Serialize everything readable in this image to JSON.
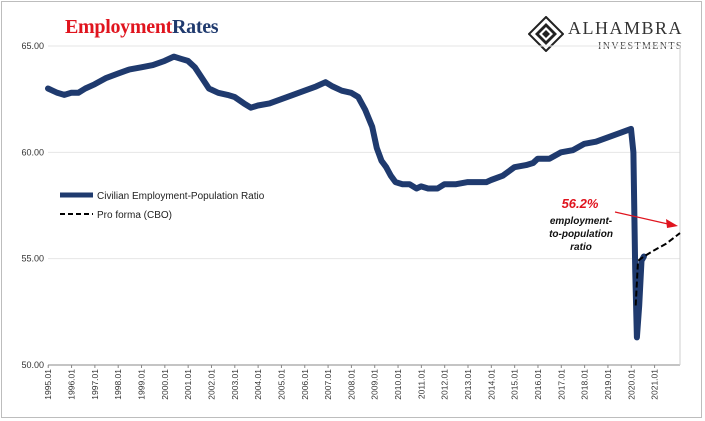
{
  "title": {
    "part1": "Employment",
    "part2": "Rates"
  },
  "logo": {
    "name": "ALHAMBRA",
    "sub": "INVESTMENTS"
  },
  "annotation": {
    "value": "56.2%",
    "text_lines": [
      "employment-",
      "to-population",
      "ratio"
    ],
    "color": "#e0141e"
  },
  "colors": {
    "series": "#1f3a6e",
    "proforma": "#000000",
    "accent": "#e0141e"
  },
  "chart_data": {
    "type": "line",
    "ylim": [
      50,
      65
    ],
    "y_ticks": [
      "50.00",
      "55.00",
      "60.00",
      "65.00"
    ],
    "x_tick_labels": [
      "1995.01",
      "1996.01",
      "1997.01",
      "1998.01",
      "1999.01",
      "2000.01",
      "2001.01",
      "2002.01",
      "2003.01",
      "2004.01",
      "2005.01",
      "2006.01",
      "2007.01",
      "2008.01",
      "2009.01",
      "2010.01",
      "2011.01",
      "2012.01",
      "2013.01",
      "2014.01",
      "2015.01",
      "2016.01",
      "2017.01",
      "2018.01",
      "2019.01",
      "2020.01",
      "2021.01"
    ],
    "x_range": [
      1995.0,
      2022.1
    ],
    "legend": {
      "placement": "left-middle"
    },
    "series": [
      {
        "name": "Civilian Employment-Population Ratio",
        "style": "solid",
        "points": [
          [
            1995.0,
            63.0
          ],
          [
            1995.2,
            62.9
          ],
          [
            1995.4,
            62.8
          ],
          [
            1995.7,
            62.7
          ],
          [
            1996.0,
            62.8
          ],
          [
            1996.3,
            62.8
          ],
          [
            1996.6,
            63.0
          ],
          [
            1997.0,
            63.2
          ],
          [
            1997.5,
            63.5
          ],
          [
            1998.0,
            63.7
          ],
          [
            1998.5,
            63.9
          ],
          [
            1999.0,
            64.0
          ],
          [
            1999.5,
            64.1
          ],
          [
            2000.0,
            64.3
          ],
          [
            2000.4,
            64.5
          ],
          [
            2000.7,
            64.4
          ],
          [
            2001.0,
            64.3
          ],
          [
            2001.3,
            64.0
          ],
          [
            2001.6,
            63.5
          ],
          [
            2001.9,
            63.0
          ],
          [
            2002.3,
            62.8
          ],
          [
            2002.7,
            62.7
          ],
          [
            2003.0,
            62.6
          ],
          [
            2003.4,
            62.3
          ],
          [
            2003.7,
            62.1
          ],
          [
            2004.0,
            62.2
          ],
          [
            2004.5,
            62.3
          ],
          [
            2005.0,
            62.5
          ],
          [
            2005.5,
            62.7
          ],
          [
            2006.0,
            62.9
          ],
          [
            2006.5,
            63.1
          ],
          [
            2006.9,
            63.3
          ],
          [
            2007.2,
            63.1
          ],
          [
            2007.6,
            62.9
          ],
          [
            2008.0,
            62.8
          ],
          [
            2008.3,
            62.6
          ],
          [
            2008.6,
            62.0
          ],
          [
            2008.9,
            61.2
          ],
          [
            2009.1,
            60.2
          ],
          [
            2009.3,
            59.6
          ],
          [
            2009.5,
            59.3
          ],
          [
            2009.7,
            58.9
          ],
          [
            2009.9,
            58.6
          ],
          [
            2010.2,
            58.5
          ],
          [
            2010.5,
            58.5
          ],
          [
            2010.8,
            58.3
          ],
          [
            2011.0,
            58.4
          ],
          [
            2011.3,
            58.3
          ],
          [
            2011.7,
            58.3
          ],
          [
            2012.0,
            58.5
          ],
          [
            2012.5,
            58.5
          ],
          [
            2013.0,
            58.6
          ],
          [
            2013.5,
            58.6
          ],
          [
            2013.8,
            58.6
          ],
          [
            2014.0,
            58.7
          ],
          [
            2014.5,
            58.9
          ],
          [
            2015.0,
            59.3
          ],
          [
            2015.5,
            59.4
          ],
          [
            2015.8,
            59.5
          ],
          [
            2016.0,
            59.7
          ],
          [
            2016.5,
            59.7
          ],
          [
            2017.0,
            60.0
          ],
          [
            2017.5,
            60.1
          ],
          [
            2018.0,
            60.4
          ],
          [
            2018.5,
            60.5
          ],
          [
            2019.0,
            60.7
          ],
          [
            2019.5,
            60.9
          ],
          [
            2020.0,
            61.1
          ],
          [
            2020.1,
            60.0
          ],
          [
            2020.18,
            54.5
          ],
          [
            2020.25,
            51.3
          ],
          [
            2020.35,
            52.8
          ],
          [
            2020.45,
            54.9
          ],
          [
            2020.55,
            55.1
          ]
        ]
      },
      {
        "name": "Pro forma (CBO)",
        "style": "dashed",
        "points": [
          [
            2020.2,
            52.8
          ],
          [
            2020.3,
            54.9
          ],
          [
            2020.55,
            55.1
          ],
          [
            2021.0,
            55.4
          ],
          [
            2021.5,
            55.7
          ],
          [
            2022.1,
            56.2
          ]
        ]
      }
    ]
  }
}
